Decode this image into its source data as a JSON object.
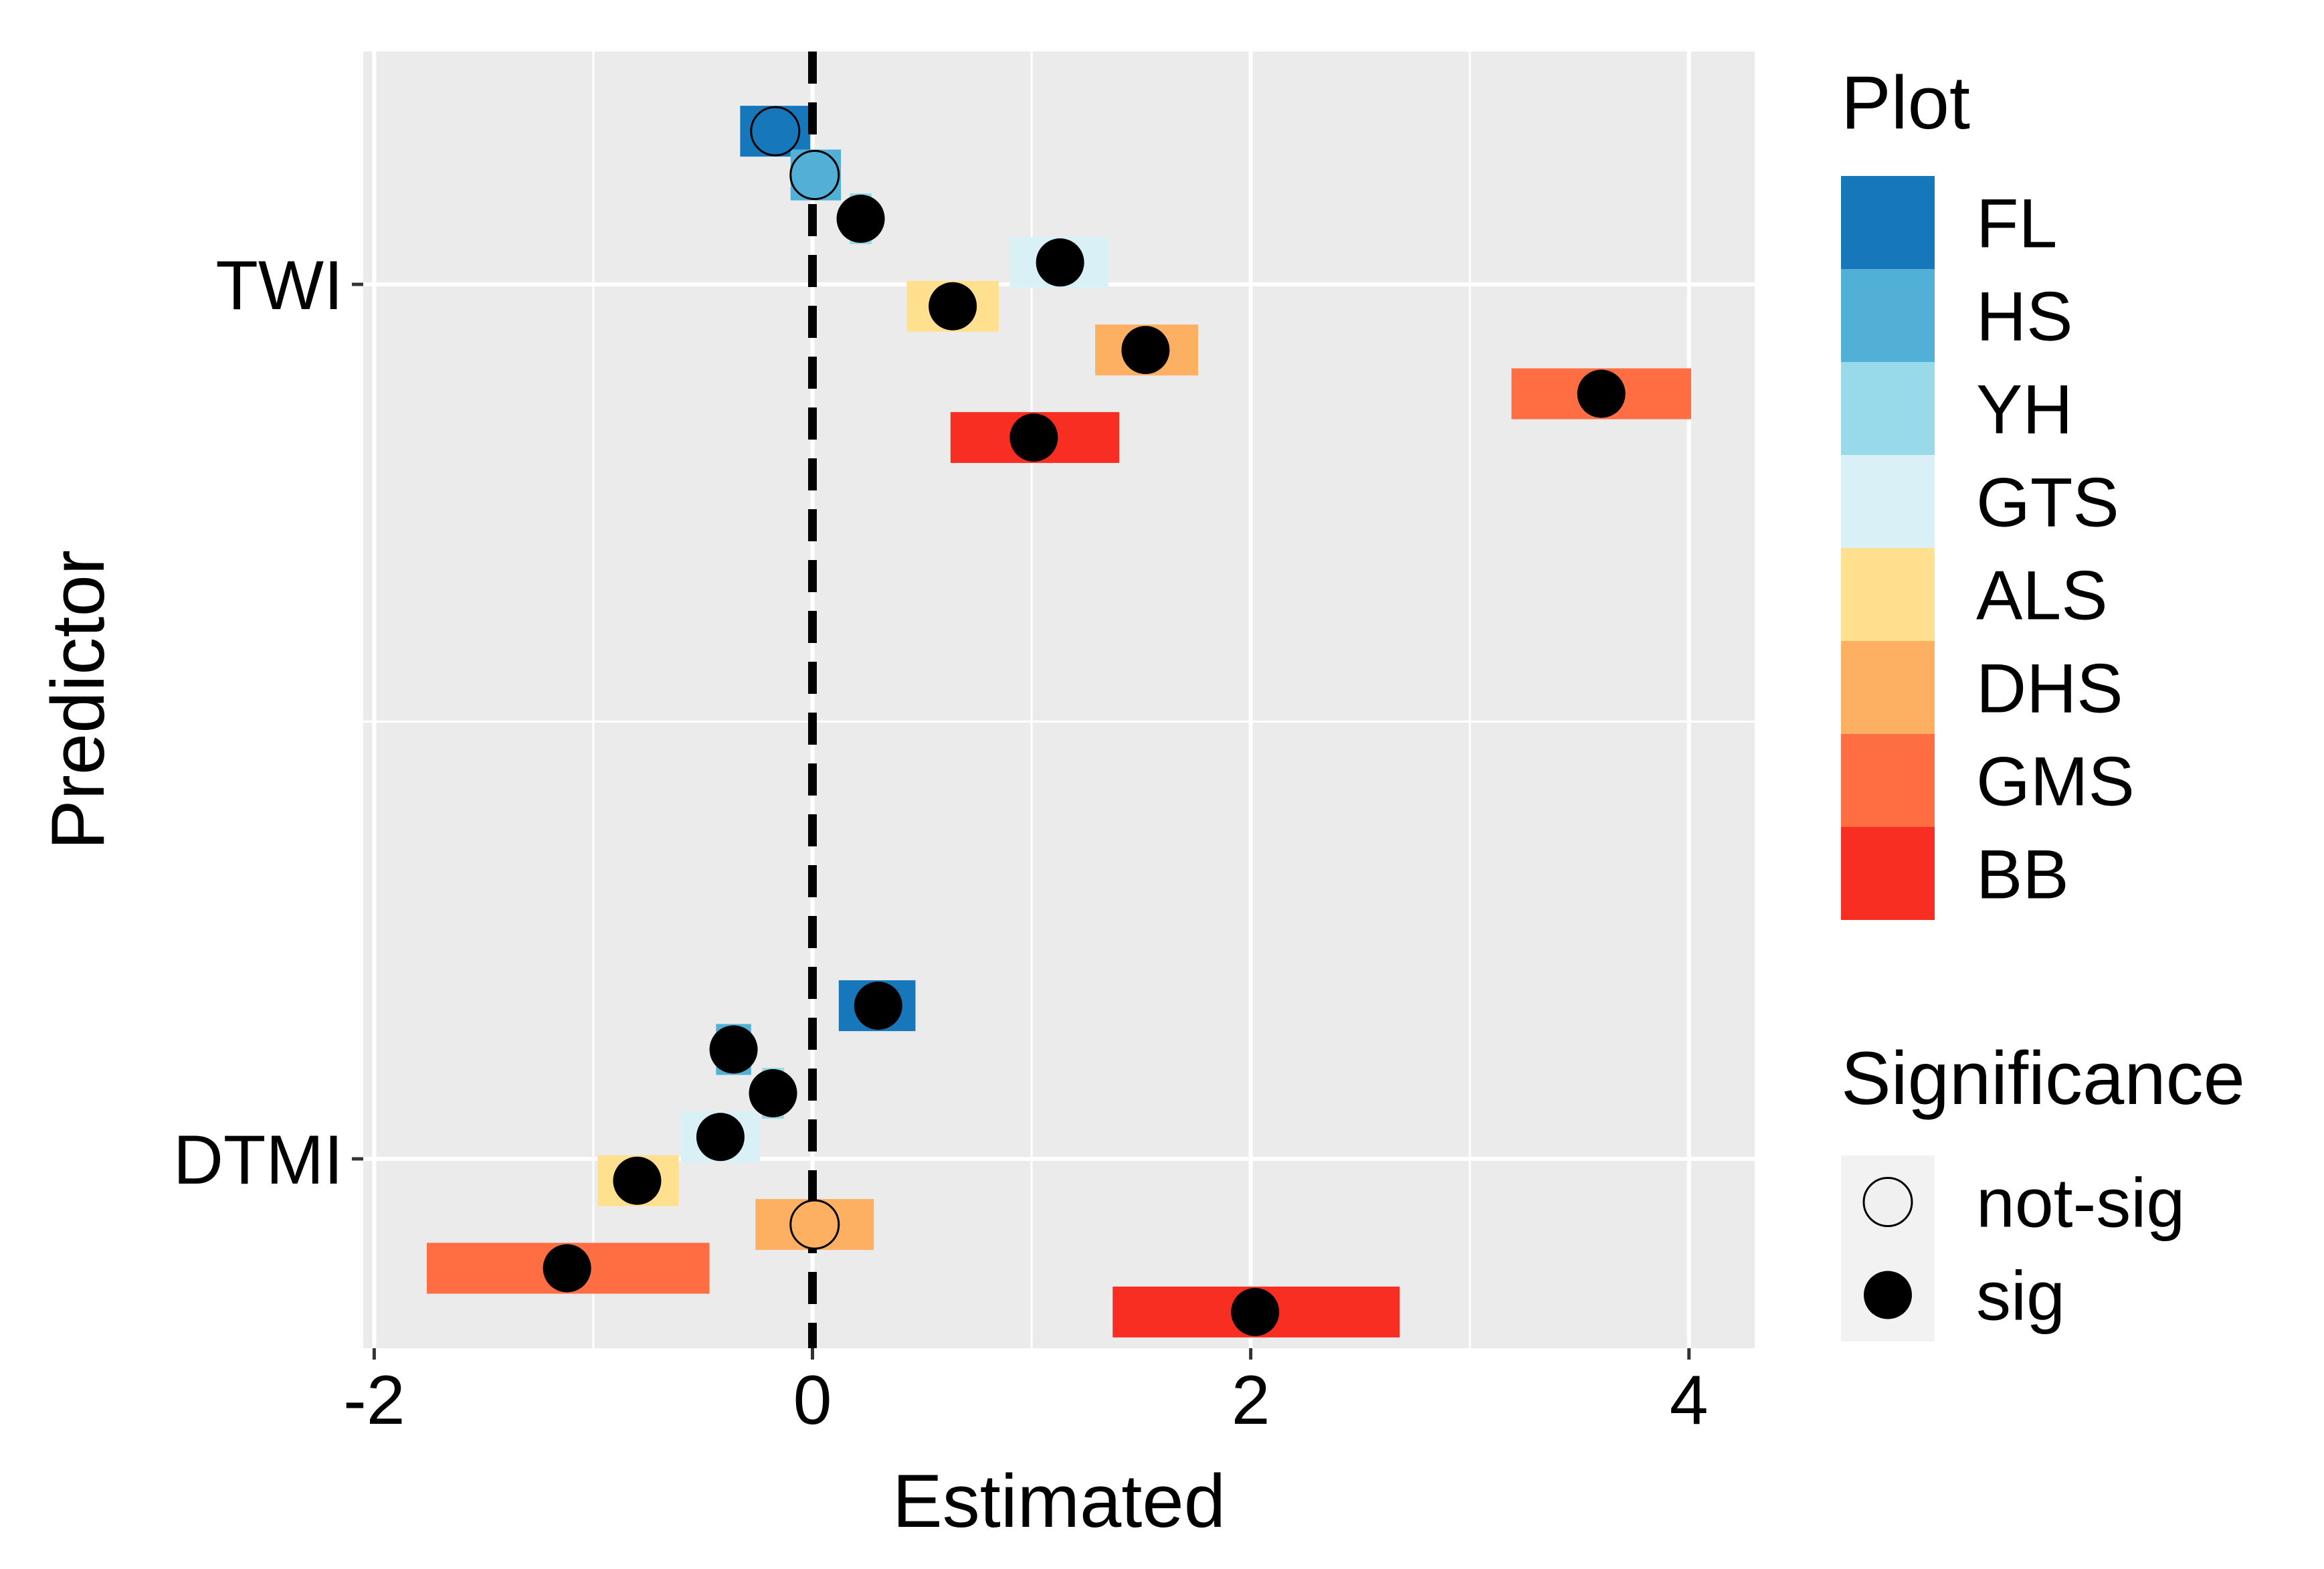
{
  "chart_data": {
    "type": "forest",
    "xlabel": "Estimated",
    "ylabel": "Predictor",
    "xlim": [
      -2.05,
      4.3
    ],
    "x_ticks": [
      -2,
      0,
      2,
      4
    ],
    "x_tick_labels": [
      "-2",
      "0",
      "2",
      "4"
    ],
    "categories": [
      "DTMI",
      "TWI"
    ],
    "reference_line": {
      "x": 0,
      "style": "dashed",
      "color": "#000000"
    },
    "grid": true,
    "panel_background": "#EBEBEB",
    "legend_position": "right",
    "plot_legend": {
      "title": "Plot",
      "items": [
        {
          "label": "FL",
          "color": "#1777BB"
        },
        {
          "label": "HS",
          "color": "#52B0D6"
        },
        {
          "label": "YH",
          "color": "#98D9EA"
        },
        {
          "label": "GTS",
          "color": "#D9F0F6"
        },
        {
          "label": "ALS",
          "color": "#FEE08F"
        },
        {
          "label": "DHS",
          "color": "#FDAF62"
        },
        {
          "label": "GMS",
          "color": "#FE6E42"
        },
        {
          "label": "BB",
          "color": "#F92E23"
        }
      ]
    },
    "significance_legend": {
      "title": "Significance",
      "items": [
        {
          "label": "not-sig",
          "fill": "#F0F0F0"
        },
        {
          "label": "sig",
          "fill": "#000000"
        }
      ]
    },
    "series": [
      {
        "predictor": "TWI",
        "points": [
          {
            "plot": "FL",
            "estimate": -0.17,
            "lower": -0.33,
            "upper": -0.01,
            "significance": "not-sig"
          },
          {
            "plot": "HS",
            "estimate": 0.01,
            "lower": -0.1,
            "upper": 0.13,
            "significance": "not-sig"
          },
          {
            "plot": "YH",
            "estimate": 0.22,
            "lower": 0.17,
            "upper": 0.27,
            "significance": "sig"
          },
          {
            "plot": "GTS",
            "estimate": 1.13,
            "lower": 0.9,
            "upper": 1.35,
            "significance": "sig"
          },
          {
            "plot": "ALS",
            "estimate": 0.64,
            "lower": 0.43,
            "upper": 0.85,
            "significance": "sig"
          },
          {
            "plot": "DHS",
            "estimate": 1.52,
            "lower": 1.29,
            "upper": 1.76,
            "significance": "sig"
          },
          {
            "plot": "GMS",
            "estimate": 3.6,
            "lower": 3.19,
            "upper": 4.01,
            "significance": "sig"
          },
          {
            "plot": "BB",
            "estimate": 1.01,
            "lower": 0.63,
            "upper": 1.4,
            "significance": "sig"
          }
        ]
      },
      {
        "predictor": "DTMI",
        "points": [
          {
            "plot": "FL",
            "estimate": 0.3,
            "lower": 0.12,
            "upper": 0.47,
            "significance": "sig"
          },
          {
            "plot": "HS",
            "estimate": -0.36,
            "lower": -0.44,
            "upper": -0.28,
            "significance": "sig"
          },
          {
            "plot": "YH",
            "estimate": -0.18,
            "lower": -0.23,
            "upper": -0.13,
            "significance": "sig"
          },
          {
            "plot": "GTS",
            "estimate": -0.42,
            "lower": -0.6,
            "upper": -0.24,
            "significance": "sig"
          },
          {
            "plot": "ALS",
            "estimate": -0.8,
            "lower": -0.98,
            "upper": -0.61,
            "significance": "sig"
          },
          {
            "plot": "DHS",
            "estimate": 0.01,
            "lower": -0.26,
            "upper": 0.28,
            "significance": "not-sig"
          },
          {
            "plot": "GMS",
            "estimate": -1.12,
            "lower": -1.76,
            "upper": -0.47,
            "significance": "sig"
          },
          {
            "plot": "BB",
            "estimate": 2.02,
            "lower": 1.37,
            "upper": 2.68,
            "significance": "sig"
          }
        ]
      }
    ]
  }
}
